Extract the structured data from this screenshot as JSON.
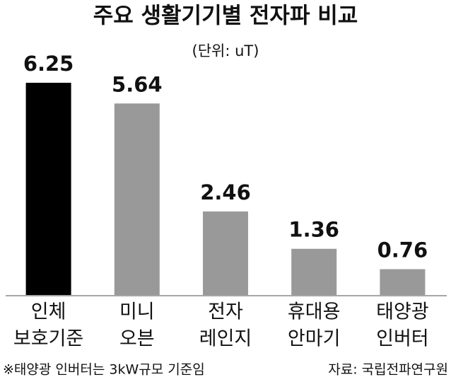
{
  "chart_data": {
    "type": "bar",
    "title": "주요 생활기기별 전자파 비교",
    "subtitle": "(단위: uT)",
    "categories": [
      [
        "인체",
        "보호기준"
      ],
      [
        "미니",
        "오븐"
      ],
      [
        "전자",
        "레인지"
      ],
      [
        "휴대용",
        "안마기"
      ],
      [
        "태양광",
        "인버터"
      ]
    ],
    "values": [
      6.25,
      5.64,
      2.46,
      1.36,
      0.76
    ],
    "colors": [
      "#000000",
      "#999999",
      "#999999",
      "#999999",
      "#999999"
    ],
    "ylim": [
      0,
      6.25
    ],
    "note": "※태양광 인버터는 3kW규모 기준임",
    "source": "자료: 국립전파연구원"
  }
}
